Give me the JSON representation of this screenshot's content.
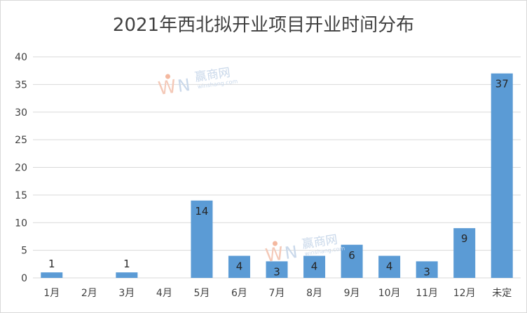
{
  "chart_data": {
    "type": "bar",
    "title": "2021年西北拟开业项目开业时间分布",
    "categories": [
      "1月",
      "2月",
      "3月",
      "4月",
      "5月",
      "6月",
      "7月",
      "8月",
      "9月",
      "10月",
      "11月",
      "12月",
      "未定"
    ],
    "values": [
      1,
      0,
      1,
      0,
      14,
      4,
      3,
      4,
      6,
      4,
      3,
      9,
      37
    ],
    "data_labels": [
      "1",
      "",
      "1",
      "",
      "14",
      "4",
      "3",
      "4",
      "6",
      "4",
      "3",
      "9",
      "37"
    ],
    "y_ticks": [
      "0",
      "5",
      "10",
      "15",
      "20",
      "25",
      "30",
      "35",
      "40"
    ],
    "ylim": [
      0,
      40
    ],
    "bar_color": "#5b9bd5",
    "grid": true,
    "legend": "none"
  },
  "watermark": {
    "brand": "赢商网",
    "sub": "winshang.com"
  }
}
